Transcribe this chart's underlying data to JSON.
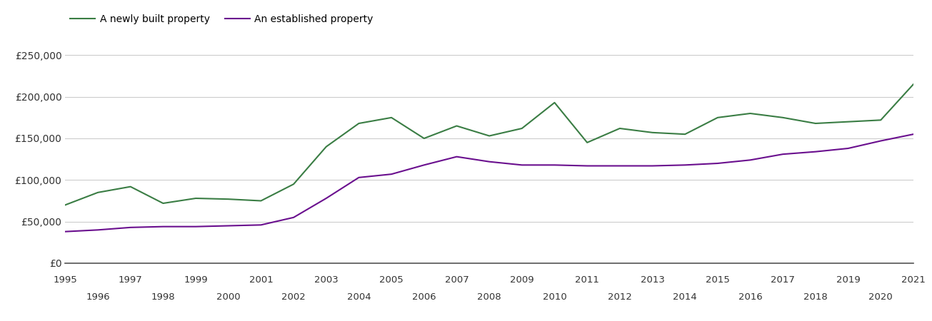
{
  "years": [
    1995,
    1996,
    1997,
    1998,
    1999,
    2000,
    2001,
    2002,
    2003,
    2004,
    2005,
    2006,
    2007,
    2008,
    2009,
    2010,
    2011,
    2012,
    2013,
    2014,
    2015,
    2016,
    2017,
    2018,
    2019,
    2020,
    2021
  ],
  "newly_built": [
    70000,
    85000,
    92000,
    72000,
    78000,
    77000,
    75000,
    95000,
    140000,
    168000,
    175000,
    150000,
    165000,
    153000,
    162000,
    193000,
    145000,
    162000,
    157000,
    155000,
    175000,
    180000,
    175000,
    168000,
    170000,
    172000,
    215000
  ],
  "established": [
    38000,
    40000,
    43000,
    44000,
    44000,
    45000,
    46000,
    55000,
    78000,
    103000,
    107000,
    118000,
    128000,
    122000,
    118000,
    118000,
    117000,
    117000,
    117000,
    118000,
    120000,
    124000,
    131000,
    134000,
    138000,
    147000,
    155000
  ],
  "newly_built_color": "#3a7d44",
  "established_color": "#6a0f8e",
  "legend_label_new": "A newly built property",
  "legend_label_est": "An established property",
  "yticks": [
    0,
    50000,
    100000,
    150000,
    200000,
    250000
  ],
  "ytick_labels": [
    "£0",
    "£50,000",
    "£100,000",
    "£150,000",
    "£200,000",
    "£250,000"
  ],
  "ylim": [
    0,
    270000
  ],
  "xlim": [
    1995,
    2021
  ],
  "grid_color": "#cccccc",
  "background_color": "#ffffff",
  "line_width": 1.5
}
